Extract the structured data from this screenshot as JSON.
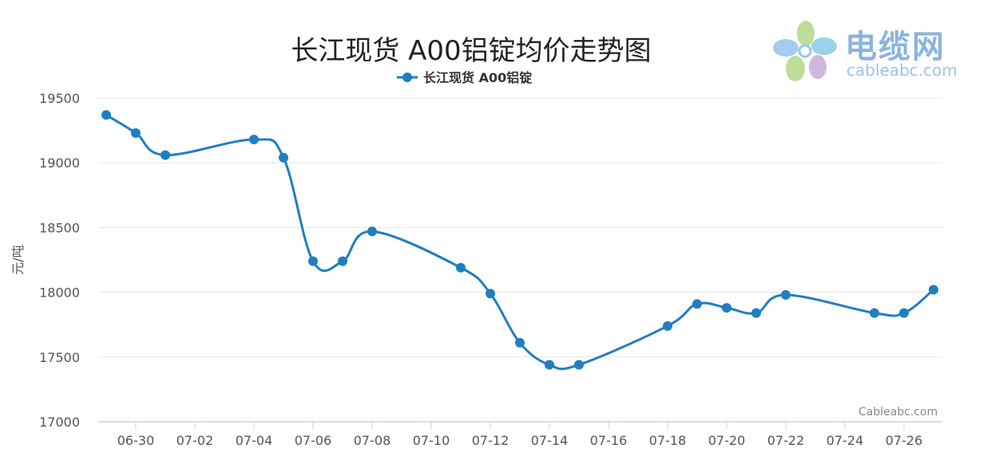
{
  "logo": {
    "title": "电缆网",
    "subtitle": "cableabc.com"
  },
  "watermark": "Cableabc.com",
  "colors": {
    "series": "#1f7fc0",
    "grid": "#e6e6e6",
    "axis_text": "#555555",
    "title": "#222222"
  },
  "chart_data": {
    "type": "line",
    "title": "长江现货 A00铝锭均价走势图",
    "ylabel": "元/吨",
    "xlabel": "",
    "ylim": [
      17000,
      19500
    ],
    "yticks": [
      17000,
      17500,
      18000,
      18500,
      19000,
      19500
    ],
    "grid": true,
    "legend": "top-center",
    "xticks": [
      "06-30",
      "07-02",
      "07-04",
      "07-06",
      "07-08",
      "07-10",
      "07-12",
      "07-14",
      "07-16",
      "07-18",
      "07-20",
      "07-22",
      "07-24",
      "07-26"
    ],
    "series": [
      {
        "name": "长江现货 A00铝锭",
        "x": [
          "06-29",
          "06-30",
          "07-01",
          "07-04",
          "07-05",
          "07-06",
          "07-07",
          "07-08",
          "07-11",
          "07-12",
          "07-13",
          "07-14",
          "07-15",
          "07-18",
          "07-19",
          "07-20",
          "07-21",
          "07-22",
          "07-25",
          "07-26",
          "07-27"
        ],
        "values": [
          19370,
          19230,
          19060,
          19180,
          19040,
          18240,
          18240,
          18470,
          18190,
          17990,
          17610,
          17440,
          17440,
          17740,
          17910,
          17880,
          17840,
          17980,
          17840,
          17840,
          18020
        ]
      }
    ]
  }
}
